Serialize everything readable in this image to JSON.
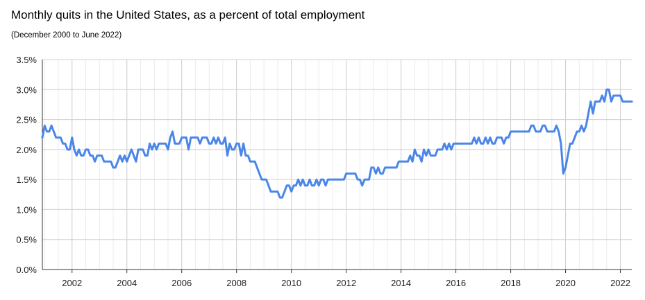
{
  "chart_data": {
    "type": "line",
    "title": "Monthly quits in the United States, as a percent of total employment",
    "subtitle": "(December 2000 to June 2022)",
    "xlabel": "",
    "ylabel": "",
    "xlim": [
      2000.917,
      2022.417
    ],
    "ylim": [
      0,
      3.5
    ],
    "ytick_values": [
      0,
      0.5,
      1.0,
      1.5,
      2.0,
      2.5,
      3.0,
      3.5
    ],
    "ytick_labels": [
      "0.0%",
      "0.5%",
      "1.0%",
      "1.5%",
      "2.0%",
      "2.5%",
      "3.0%",
      "3.5%"
    ],
    "xtick_values": [
      2002,
      2004,
      2006,
      2008,
      2010,
      2012,
      2014,
      2016,
      2018,
      2020,
      2022
    ],
    "xtick_labels": [
      "2002",
      "2004",
      "2006",
      "2008",
      "2010",
      "2012",
      "2014",
      "2016",
      "2018",
      "2020",
      "2022"
    ],
    "grid": true,
    "line_color": "#4a86e8",
    "series": [
      {
        "values": [
          [
            2000.917,
            2.2
          ],
          [
            2001.0,
            2.4
          ],
          [
            2001.083,
            2.3
          ],
          [
            2001.167,
            2.3
          ],
          [
            2001.25,
            2.4
          ],
          [
            2001.333,
            2.3
          ],
          [
            2001.417,
            2.2
          ],
          [
            2001.5,
            2.2
          ],
          [
            2001.583,
            2.2
          ],
          [
            2001.667,
            2.1
          ],
          [
            2001.75,
            2.1
          ],
          [
            2001.833,
            2.0
          ],
          [
            2001.917,
            2.0
          ],
          [
            2002.0,
            2.2
          ],
          [
            2002.083,
            2.0
          ],
          [
            2002.167,
            1.9
          ],
          [
            2002.25,
            2.0
          ],
          [
            2002.333,
            1.9
          ],
          [
            2002.417,
            1.9
          ],
          [
            2002.5,
            2.0
          ],
          [
            2002.583,
            2.0
          ],
          [
            2002.667,
            1.9
          ],
          [
            2002.75,
            1.9
          ],
          [
            2002.833,
            1.8
          ],
          [
            2002.917,
            1.9
          ],
          [
            2003.0,
            1.9
          ],
          [
            2003.083,
            1.9
          ],
          [
            2003.167,
            1.8
          ],
          [
            2003.25,
            1.8
          ],
          [
            2003.333,
            1.8
          ],
          [
            2003.417,
            1.8
          ],
          [
            2003.5,
            1.7
          ],
          [
            2003.583,
            1.7
          ],
          [
            2003.667,
            1.8
          ],
          [
            2003.75,
            1.9
          ],
          [
            2003.833,
            1.8
          ],
          [
            2003.917,
            1.9
          ],
          [
            2004.0,
            1.8
          ],
          [
            2004.083,
            1.9
          ],
          [
            2004.167,
            2.0
          ],
          [
            2004.25,
            1.9
          ],
          [
            2004.333,
            1.8
          ],
          [
            2004.417,
            2.0
          ],
          [
            2004.5,
            2.0
          ],
          [
            2004.583,
            2.0
          ],
          [
            2004.667,
            1.9
          ],
          [
            2004.75,
            1.9
          ],
          [
            2004.833,
            2.1
          ],
          [
            2004.917,
            2.0
          ],
          [
            2005.0,
            2.1
          ],
          [
            2005.083,
            2.0
          ],
          [
            2005.167,
            2.1
          ],
          [
            2005.25,
            2.1
          ],
          [
            2005.333,
            2.1
          ],
          [
            2005.417,
            2.1
          ],
          [
            2005.5,
            2.0
          ],
          [
            2005.583,
            2.2
          ],
          [
            2005.667,
            2.3
          ],
          [
            2005.75,
            2.1
          ],
          [
            2005.833,
            2.1
          ],
          [
            2005.917,
            2.1
          ],
          [
            2006.0,
            2.2
          ],
          [
            2006.083,
            2.2
          ],
          [
            2006.167,
            2.2
          ],
          [
            2006.25,
            2.0
          ],
          [
            2006.333,
            2.2
          ],
          [
            2006.417,
            2.2
          ],
          [
            2006.5,
            2.2
          ],
          [
            2006.583,
            2.2
          ],
          [
            2006.667,
            2.1
          ],
          [
            2006.75,
            2.2
          ],
          [
            2006.833,
            2.2
          ],
          [
            2006.917,
            2.2
          ],
          [
            2007.0,
            2.1
          ],
          [
            2007.083,
            2.1
          ],
          [
            2007.167,
            2.2
          ],
          [
            2007.25,
            2.1
          ],
          [
            2007.333,
            2.2
          ],
          [
            2007.417,
            2.1
          ],
          [
            2007.5,
            2.1
          ],
          [
            2007.583,
            2.2
          ],
          [
            2007.667,
            1.9
          ],
          [
            2007.75,
            2.1
          ],
          [
            2007.833,
            2.0
          ],
          [
            2007.917,
            2.0
          ],
          [
            2008.0,
            2.1
          ],
          [
            2008.083,
            2.1
          ],
          [
            2008.167,
            1.9
          ],
          [
            2008.25,
            2.1
          ],
          [
            2008.333,
            1.9
          ],
          [
            2008.417,
            1.9
          ],
          [
            2008.5,
            1.8
          ],
          [
            2008.583,
            1.8
          ],
          [
            2008.667,
            1.8
          ],
          [
            2008.75,
            1.7
          ],
          [
            2008.833,
            1.6
          ],
          [
            2008.917,
            1.5
          ],
          [
            2009.0,
            1.5
          ],
          [
            2009.083,
            1.5
          ],
          [
            2009.167,
            1.4
          ],
          [
            2009.25,
            1.3
          ],
          [
            2009.333,
            1.3
          ],
          [
            2009.417,
            1.3
          ],
          [
            2009.5,
            1.3
          ],
          [
            2009.583,
            1.2
          ],
          [
            2009.667,
            1.2
          ],
          [
            2009.75,
            1.3
          ],
          [
            2009.833,
            1.4
          ],
          [
            2009.917,
            1.4
          ],
          [
            2010.0,
            1.3
          ],
          [
            2010.083,
            1.4
          ],
          [
            2010.167,
            1.4
          ],
          [
            2010.25,
            1.5
          ],
          [
            2010.333,
            1.4
          ],
          [
            2010.417,
            1.5
          ],
          [
            2010.5,
            1.4
          ],
          [
            2010.583,
            1.4
          ],
          [
            2010.667,
            1.5
          ],
          [
            2010.75,
            1.4
          ],
          [
            2010.833,
            1.4
          ],
          [
            2010.917,
            1.5
          ],
          [
            2011.0,
            1.4
          ],
          [
            2011.083,
            1.5
          ],
          [
            2011.167,
            1.5
          ],
          [
            2011.25,
            1.4
          ],
          [
            2011.333,
            1.5
          ],
          [
            2011.417,
            1.5
          ],
          [
            2011.5,
            1.5
          ],
          [
            2011.583,
            1.5
          ],
          [
            2011.667,
            1.5
          ],
          [
            2011.75,
            1.5
          ],
          [
            2011.833,
            1.5
          ],
          [
            2011.917,
            1.5
          ],
          [
            2012.0,
            1.6
          ],
          [
            2012.083,
            1.6
          ],
          [
            2012.167,
            1.6
          ],
          [
            2012.25,
            1.6
          ],
          [
            2012.333,
            1.6
          ],
          [
            2012.417,
            1.5
          ],
          [
            2012.5,
            1.5
          ],
          [
            2012.583,
            1.4
          ],
          [
            2012.667,
            1.5
          ],
          [
            2012.75,
            1.5
          ],
          [
            2012.833,
            1.5
          ],
          [
            2012.917,
            1.7
          ],
          [
            2013.0,
            1.7
          ],
          [
            2013.083,
            1.6
          ],
          [
            2013.167,
            1.7
          ],
          [
            2013.25,
            1.6
          ],
          [
            2013.333,
            1.6
          ],
          [
            2013.417,
            1.7
          ],
          [
            2013.5,
            1.7
          ],
          [
            2013.583,
            1.7
          ],
          [
            2013.667,
            1.7
          ],
          [
            2013.75,
            1.7
          ],
          [
            2013.833,
            1.7
          ],
          [
            2013.917,
            1.8
          ],
          [
            2014.0,
            1.8
          ],
          [
            2014.083,
            1.8
          ],
          [
            2014.167,
            1.8
          ],
          [
            2014.25,
            1.8
          ],
          [
            2014.333,
            1.9
          ],
          [
            2014.417,
            1.8
          ],
          [
            2014.5,
            2.0
          ],
          [
            2014.583,
            1.9
          ],
          [
            2014.667,
            1.9
          ],
          [
            2014.75,
            1.8
          ],
          [
            2014.833,
            2.0
          ],
          [
            2014.917,
            1.9
          ],
          [
            2015.0,
            2.0
          ],
          [
            2015.083,
            1.9
          ],
          [
            2015.167,
            1.9
          ],
          [
            2015.25,
            1.9
          ],
          [
            2015.333,
            2.0
          ],
          [
            2015.417,
            2.0
          ],
          [
            2015.5,
            2.0
          ],
          [
            2015.583,
            2.1
          ],
          [
            2015.667,
            2.0
          ],
          [
            2015.75,
            2.1
          ],
          [
            2015.833,
            2.0
          ],
          [
            2015.917,
            2.1
          ],
          [
            2016.0,
            2.1
          ],
          [
            2016.083,
            2.1
          ],
          [
            2016.167,
            2.1
          ],
          [
            2016.25,
            2.1
          ],
          [
            2016.333,
            2.1
          ],
          [
            2016.417,
            2.1
          ],
          [
            2016.5,
            2.1
          ],
          [
            2016.583,
            2.1
          ],
          [
            2016.667,
            2.2
          ],
          [
            2016.75,
            2.1
          ],
          [
            2016.833,
            2.2
          ],
          [
            2016.917,
            2.1
          ],
          [
            2017.0,
            2.1
          ],
          [
            2017.083,
            2.2
          ],
          [
            2017.167,
            2.1
          ],
          [
            2017.25,
            2.2
          ],
          [
            2017.333,
            2.1
          ],
          [
            2017.417,
            2.1
          ],
          [
            2017.5,
            2.2
          ],
          [
            2017.583,
            2.2
          ],
          [
            2017.667,
            2.2
          ],
          [
            2017.75,
            2.1
          ],
          [
            2017.833,
            2.2
          ],
          [
            2017.917,
            2.2
          ],
          [
            2018.0,
            2.3
          ],
          [
            2018.083,
            2.3
          ],
          [
            2018.167,
            2.3
          ],
          [
            2018.25,
            2.3
          ],
          [
            2018.333,
            2.3
          ],
          [
            2018.417,
            2.3
          ],
          [
            2018.5,
            2.3
          ],
          [
            2018.583,
            2.3
          ],
          [
            2018.667,
            2.3
          ],
          [
            2018.75,
            2.4
          ],
          [
            2018.833,
            2.4
          ],
          [
            2018.917,
            2.3
          ],
          [
            2019.0,
            2.3
          ],
          [
            2019.083,
            2.3
          ],
          [
            2019.167,
            2.4
          ],
          [
            2019.25,
            2.4
          ],
          [
            2019.333,
            2.3
          ],
          [
            2019.417,
            2.3
          ],
          [
            2019.5,
            2.3
          ],
          [
            2019.583,
            2.3
          ],
          [
            2019.667,
            2.4
          ],
          [
            2019.75,
            2.3
          ],
          [
            2019.833,
            2.1
          ],
          [
            2019.917,
            1.6
          ],
          [
            2020.0,
            1.7
          ],
          [
            2020.083,
            1.9
          ],
          [
            2020.167,
            2.1
          ],
          [
            2020.25,
            2.1
          ],
          [
            2020.333,
            2.2
          ],
          [
            2020.417,
            2.3
          ],
          [
            2020.5,
            2.3
          ],
          [
            2020.583,
            2.4
          ],
          [
            2020.667,
            2.3
          ],
          [
            2020.75,
            2.4
          ],
          [
            2020.833,
            2.6
          ],
          [
            2020.917,
            2.8
          ],
          [
            2021.0,
            2.6
          ],
          [
            2021.083,
            2.8
          ],
          [
            2021.167,
            2.8
          ],
          [
            2021.25,
            2.8
          ],
          [
            2021.333,
            2.9
          ],
          [
            2021.417,
            2.8
          ],
          [
            2021.5,
            3.0
          ],
          [
            2021.583,
            3.0
          ],
          [
            2021.667,
            2.8
          ],
          [
            2021.75,
            2.9
          ],
          [
            2021.833,
            2.9
          ],
          [
            2021.917,
            2.9
          ],
          [
            2022.0,
            2.9
          ],
          [
            2022.083,
            2.8
          ],
          [
            2022.167,
            2.8
          ],
          [
            2022.25,
            2.8
          ],
          [
            2022.333,
            2.8
          ],
          [
            2022.417,
            2.8
          ]
        ]
      }
    ]
  }
}
